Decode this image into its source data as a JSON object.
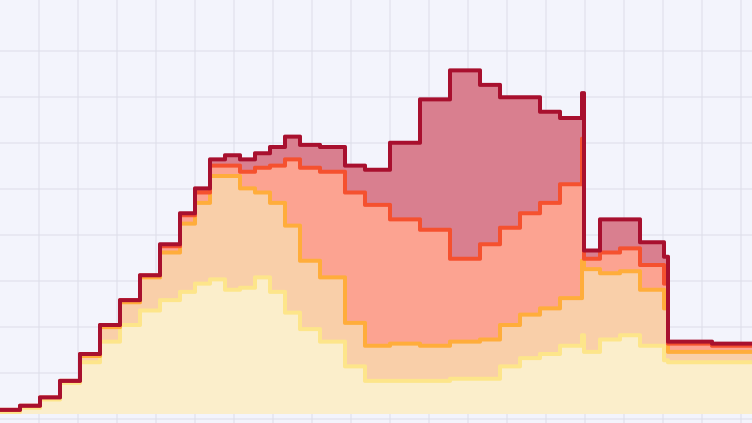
{
  "chart_data": {
    "type": "area",
    "stacked": true,
    "step": true,
    "title": "",
    "xlabel": "",
    "ylabel": "",
    "grid": true,
    "legend": "none",
    "xlim": [
      0,
      752
    ],
    "ylim": [
      0,
      100
    ],
    "background": "#f3f4fc",
    "x": [
      0,
      20,
      40,
      60,
      80,
      100,
      120,
      140,
      160,
      180,
      195,
      210,
      225,
      240,
      255,
      270,
      285,
      300,
      320,
      345,
      365,
      390,
      420,
      450,
      480,
      500,
      520,
      540,
      560,
      582,
      584,
      600,
      620,
      640,
      664,
      668,
      690,
      712,
      752
    ],
    "series": [
      {
        "name": "",
        "color": "#fbeecb",
        "line": "#fde58a",
        "values": [
          0.5,
          1.5,
          3.5,
          7.5,
          12.5,
          17.5,
          21.5,
          25,
          27.5,
          29.5,
          31.5,
          32.5,
          30,
          30.5,
          33,
          29.5,
          24.5,
          20.5,
          17.5,
          11.5,
          8,
          8,
          8,
          8.5,
          8.5,
          11.5,
          13.5,
          14.5,
          16.5,
          19,
          15,
          18,
          19,
          16.5,
          13,
          12.5,
          12.5,
          12.5,
          12.5
        ]
      },
      {
        "name": "",
        "color": "#f9cfa9",
        "line": "#ffad3b",
        "values": [
          0.5,
          0.5,
          0.5,
          0.5,
          1.5,
          3.5,
          5.5,
          8,
          11.5,
          16.5,
          19.5,
          25,
          27.5,
          24,
          20.5,
          21.5,
          21,
          16.5,
          15.5,
          10.5,
          8.5,
          9,
          8.5,
          9,
          9.5,
          10,
          10.5,
          11,
          11.5,
          18,
          20,
          16,
          15.5,
          13.5,
          12.5,
          2.5,
          2.5,
          2.5,
          2.5
        ]
      },
      {
        "name": "",
        "color": "#fca391",
        "line": "#f5512f",
        "values": [
          0,
          0,
          0,
          0,
          0.5,
          0.5,
          0.5,
          0.5,
          1.5,
          2,
          2.5,
          2.5,
          2.5,
          4,
          6,
          9,
          16,
          22.5,
          25.5,
          31.5,
          34,
          30,
          28,
          20,
          23,
          23.5,
          24.5,
          25.5,
          27.5,
          29.5,
          2.5,
          5,
          5.5,
          6,
          6,
          2,
          2,
          1.5,
          1.5
        ]
      },
      {
        "name": "",
        "color": "#d97f8f",
        "line": "#a8102e",
        "values": [
          0,
          0,
          0,
          0,
          0,
          0,
          0,
          0,
          0.5,
          0.5,
          1,
          1.5,
          2.5,
          3,
          3.5,
          4.5,
          5.5,
          5.5,
          6,
          6.5,
          8.5,
          18.5,
          31.5,
          45.5,
          38.5,
          31.5,
          28,
          22,
          16,
          11,
          2,
          8,
          7,
          5.5,
          6.5,
          0.5,
          0.5,
          0.5,
          0.5
        ]
      }
    ]
  }
}
